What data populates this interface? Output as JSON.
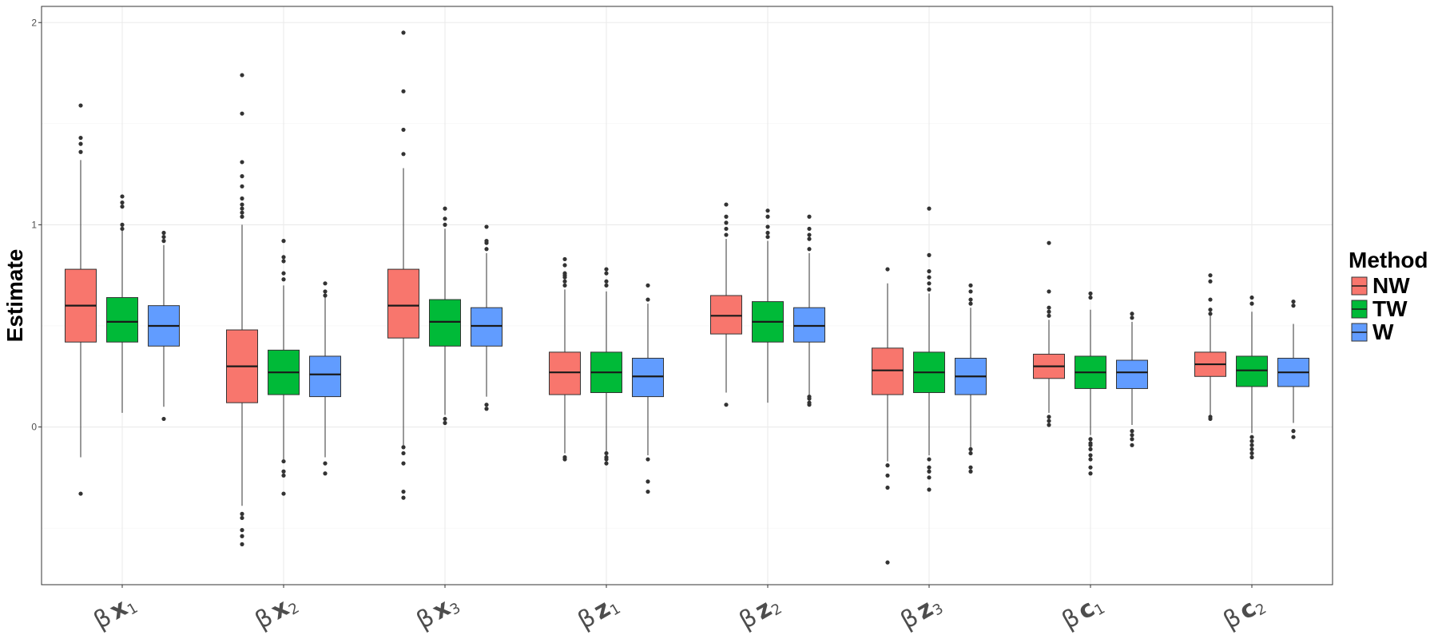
{
  "chart_data": {
    "type": "boxplot",
    "title": "",
    "xlabel": "",
    "ylabel": "Estimate",
    "ylim": [
      -0.78,
      2.08
    ],
    "yticks": [
      0,
      1,
      2
    ],
    "grid": true,
    "legend": {
      "title": "Method",
      "placement": "right",
      "entries": [
        "NW",
        "TW",
        "W"
      ]
    },
    "series_colors": {
      "NW": "#F8766D",
      "TW": "#00BA38",
      "W": "#619CFF"
    },
    "categories": [
      {
        "greek": "β",
        "sym": "x",
        "sub": "1"
      },
      {
        "greek": "β",
        "sym": "x",
        "sub": "2"
      },
      {
        "greek": "β",
        "sym": "x",
        "sub": "3"
      },
      {
        "greek": "β",
        "sym": "z",
        "sub": "1"
      },
      {
        "greek": "β",
        "sym": "z",
        "sub": "2"
      },
      {
        "greek": "β",
        "sym": "z",
        "sub": "3"
      },
      {
        "greek": "β",
        "sym": "c",
        "sub": "1"
      },
      {
        "greek": "β",
        "sym": "c",
        "sub": "2"
      }
    ],
    "boxes": [
      [
        {
          "min": -0.15,
          "q1": 0.42,
          "median": 0.6,
          "q3": 0.78,
          "max": 1.32,
          "outliers": [
            -0.33,
            1.36,
            1.4,
            1.43,
            1.59
          ]
        },
        {
          "min": 0.07,
          "q1": 0.42,
          "median": 0.52,
          "q3": 0.64,
          "max": 0.97,
          "outliers": [
            0.98,
            1.0,
            1.09,
            1.11,
            1.14
          ]
        },
        {
          "min": 0.1,
          "q1": 0.4,
          "median": 0.5,
          "q3": 0.6,
          "max": 0.9,
          "outliers": [
            0.04,
            0.92,
            0.94,
            0.96
          ]
        }
      ],
      [
        {
          "min": -0.39,
          "q1": 0.12,
          "median": 0.3,
          "q3": 0.48,
          "max": 1.0,
          "outliers": [
            -0.43,
            -0.45,
            -0.51,
            -0.54,
            -0.58,
            1.04,
            1.06,
            1.08,
            1.1,
            1.13,
            1.19,
            1.24,
            1.31,
            1.55,
            1.74
          ]
        },
        {
          "min": -0.16,
          "q1": 0.16,
          "median": 0.27,
          "q3": 0.38,
          "max": 0.7,
          "outliers": [
            -0.17,
            -0.22,
            -0.24,
            -0.33,
            0.73,
            0.76,
            0.82,
            0.84,
            0.92
          ]
        },
        {
          "min": -0.15,
          "q1": 0.15,
          "median": 0.26,
          "q3": 0.35,
          "max": 0.64,
          "outliers": [
            -0.18,
            -0.23,
            0.65,
            0.67,
            0.71
          ]
        }
      ],
      [
        {
          "min": -0.09,
          "q1": 0.44,
          "median": 0.6,
          "q3": 0.78,
          "max": 1.28,
          "outliers": [
            -0.1,
            -0.13,
            -0.18,
            -0.32,
            -0.35,
            1.35,
            1.47,
            1.66,
            1.95
          ]
        },
        {
          "min": 0.06,
          "q1": 0.4,
          "median": 0.52,
          "q3": 0.63,
          "max": 0.98,
          "outliers": [
            0.02,
            0.04,
            1.0,
            1.03,
            1.08
          ]
        },
        {
          "min": 0.15,
          "q1": 0.4,
          "median": 0.5,
          "q3": 0.59,
          "max": 0.86,
          "outliers": [
            0.09,
            0.11,
            0.88,
            0.91,
            0.92,
            0.99
          ]
        }
      ],
      [
        {
          "min": -0.13,
          "q1": 0.16,
          "median": 0.27,
          "q3": 0.37,
          "max": 0.68,
          "outliers": [
            -0.15,
            -0.16,
            0.7,
            0.72,
            0.74,
            0.75,
            0.76,
            0.8,
            0.83
          ]
        },
        {
          "min": -0.12,
          "q1": 0.17,
          "median": 0.27,
          "q3": 0.37,
          "max": 0.67,
          "outliers": [
            -0.13,
            -0.15,
            -0.16,
            -0.18,
            0.7,
            0.72,
            0.76,
            0.78
          ]
        },
        {
          "min": -0.14,
          "q1": 0.15,
          "median": 0.25,
          "q3": 0.34,
          "max": 0.61,
          "outliers": [
            -0.16,
            -0.27,
            -0.32,
            0.63,
            0.7
          ]
        }
      ],
      [
        {
          "min": 0.17,
          "q1": 0.46,
          "median": 0.55,
          "q3": 0.65,
          "max": 0.93,
          "outliers": [
            0.11,
            0.95,
            0.98,
            1.01,
            1.04,
            1.1
          ]
        },
        {
          "min": 0.12,
          "q1": 0.42,
          "median": 0.52,
          "q3": 0.62,
          "max": 0.92,
          "outliers": [
            0.94,
            0.96,
            0.99,
            1.04,
            1.07
          ]
        },
        {
          "min": 0.16,
          "q1": 0.42,
          "median": 0.5,
          "q3": 0.59,
          "max": 0.86,
          "outliers": [
            0.11,
            0.12,
            0.14,
            0.15,
            0.88,
            0.93,
            0.95,
            0.98,
            1.04
          ]
        }
      ],
      [
        {
          "min": -0.17,
          "q1": 0.16,
          "median": 0.28,
          "q3": 0.39,
          "max": 0.71,
          "outliers": [
            -0.19,
            -0.24,
            -0.3,
            -0.67,
            0.78
          ]
        },
        {
          "min": -0.14,
          "q1": 0.17,
          "median": 0.27,
          "q3": 0.37,
          "max": 0.66,
          "outliers": [
            -0.16,
            -0.2,
            -0.22,
            -0.25,
            -0.31,
            0.68,
            0.71,
            0.74,
            0.77,
            0.85,
            1.08
          ]
        },
        {
          "min": -0.1,
          "q1": 0.16,
          "median": 0.25,
          "q3": 0.34,
          "max": 0.59,
          "outliers": [
            -0.11,
            -0.13,
            -0.2,
            -0.22,
            0.61,
            0.63,
            0.67,
            0.7
          ]
        }
      ],
      [
        {
          "min": 0.07,
          "q1": 0.24,
          "median": 0.3,
          "q3": 0.36,
          "max": 0.53,
          "outliers": [
            0.01,
            0.03,
            0.05,
            0.55,
            0.57,
            0.59,
            0.67,
            0.91
          ]
        },
        {
          "min": -0.04,
          "q1": 0.19,
          "median": 0.27,
          "q3": 0.35,
          "max": 0.58,
          "outliers": [
            -0.06,
            -0.08,
            -0.09,
            -0.11,
            -0.14,
            -0.16,
            -0.2,
            -0.23,
            0.64,
            0.66
          ]
        },
        {
          "min": 0.01,
          "q1": 0.19,
          "median": 0.27,
          "q3": 0.33,
          "max": 0.52,
          "outliers": [
            -0.02,
            -0.04,
            -0.06,
            -0.09,
            0.54,
            0.56
          ]
        }
      ],
      [
        {
          "min": 0.06,
          "q1": 0.25,
          "median": 0.31,
          "q3": 0.37,
          "max": 0.55,
          "outliers": [
            0.04,
            0.05,
            0.56,
            0.58,
            0.63,
            0.72,
            0.75
          ]
        },
        {
          "min": -0.03,
          "q1": 0.2,
          "median": 0.28,
          "q3": 0.35,
          "max": 0.57,
          "outliers": [
            -0.05,
            -0.07,
            -0.09,
            -0.11,
            -0.13,
            -0.15,
            0.61,
            0.64
          ]
        },
        {
          "min": 0.02,
          "q1": 0.2,
          "median": 0.27,
          "q3": 0.34,
          "max": 0.51,
          "outliers": [
            -0.02,
            -0.05,
            0.6,
            0.62
          ]
        }
      ]
    ]
  }
}
